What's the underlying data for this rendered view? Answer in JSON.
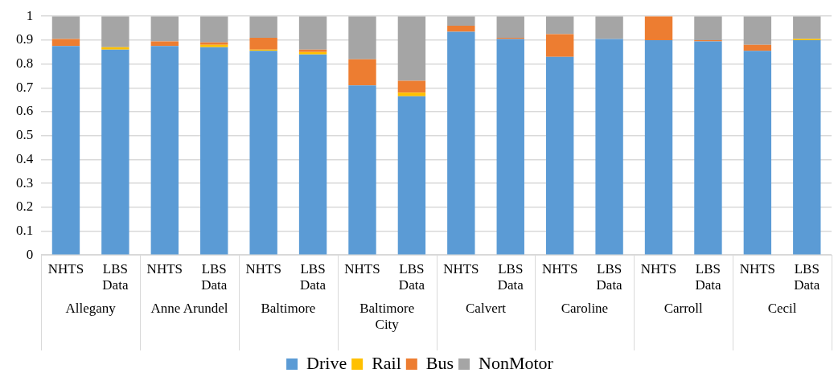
{
  "chart_data": {
    "type": "bar",
    "stacked": true,
    "categories": [
      "NHTS",
      "LBS Data",
      "NHTS",
      "LBS Data",
      "NHTS",
      "LBS Data",
      "NHTS",
      "LBS Data",
      "NHTS",
      "LBS Data",
      "NHTS",
      "LBS Data",
      "NHTS",
      "LBS Data",
      "NHTS",
      "LBS Data"
    ],
    "series": [
      {
        "name": "Drive",
        "color": "#5b9bd5",
        "values": [
          0.875,
          0.86,
          0.875,
          0.87,
          0.855,
          0.84,
          0.71,
          0.665,
          0.935,
          0.905,
          0.83,
          0.905,
          0.9,
          0.895,
          0.855,
          0.9
        ]
      },
      {
        "name": "Rail",
        "color": "#ffc000",
        "values": [
          0,
          0.01,
          0,
          0.01,
          0.005,
          0.01,
          0,
          0.015,
          0,
          0,
          0,
          0,
          0,
          0,
          0,
          0.005
        ]
      },
      {
        "name": "Bus",
        "color": "#ed7d31",
        "values": [
          0.03,
          0,
          0.02,
          0.01,
          0.05,
          0.01,
          0.11,
          0.05,
          0.025,
          0.005,
          0.095,
          0,
          0.1,
          0.005,
          0.025,
          0
        ]
      },
      {
        "name": "NonMotor",
        "color": "#a5a5a5",
        "values": [
          0.095,
          0.13,
          0.105,
          0.11,
          0.09,
          0.14,
          0.18,
          0.27,
          0.04,
          0.09,
          0.075,
          0.095,
          0,
          0.1,
          0.12,
          0.095
        ]
      }
    ],
    "annotations": [
      "Allegany",
      "Anne Arundel",
      "Baltimore",
      "Baltimore City",
      "Calvert",
      "Caroline",
      "Carroll",
      "Cecil"
    ],
    "ylim": [
      0,
      1
    ],
    "yticks": [
      0,
      0.1,
      0.2,
      0.3,
      0.4,
      0.5,
      0.6,
      0.7,
      0.8,
      0.9,
      1
    ],
    "grid": "y",
    "legend": "bottom"
  }
}
